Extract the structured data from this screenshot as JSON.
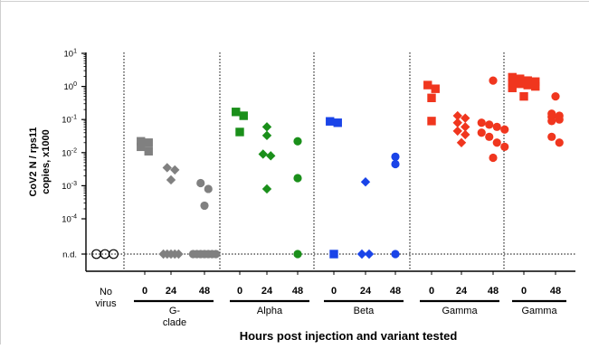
{
  "chart_data": {
    "type": "scatter",
    "title": "",
    "ylabel_lines": [
      "CoV2 N / rps11",
      "copies, x1000"
    ],
    "xlabel": "Hours post injection and variant tested",
    "yscale": "log",
    "ylim": [
      1e-05,
      10
    ],
    "y_ticks": [
      {
        "value": 10,
        "base": "10",
        "exp": "1"
      },
      {
        "value": 1,
        "base": "10",
        "exp": "0"
      },
      {
        "value": 0.1,
        "base": "10",
        "exp": "-1"
      },
      {
        "value": 0.01,
        "base": "10",
        "exp": "-2"
      },
      {
        "value": 0.001,
        "base": "10",
        "exp": "-3"
      },
      {
        "value": 0.0001,
        "base": "10",
        "exp": "-4"
      }
    ],
    "nd_label": "n.d.",
    "groups": [
      {
        "label_lines": [
          "No",
          "virus"
        ],
        "color": "#000000",
        "columns": [
          {
            "hours": "",
            "marker": "open-circle",
            "values": [
              "n.d.",
              "n.d.",
              "n.d."
            ]
          }
        ]
      },
      {
        "label_lines": [
          "G-",
          "clade"
        ],
        "color": "#808080",
        "columns": [
          {
            "hours": "0",
            "marker": "square",
            "values": [
              0.022,
              0.02,
              0.015,
              0.011
            ]
          },
          {
            "hours": "24",
            "marker": "diamond",
            "values": [
              0.0035,
              0.003,
              0.0015,
              "n.d.",
              "n.d.",
              "n.d.",
              "n.d.",
              "n.d."
            ]
          },
          {
            "hours": "48",
            "marker": "circle",
            "values": [
              0.0012,
              0.0008,
              0.00025,
              "n.d.",
              "n.d.",
              "n.d.",
              "n.d.",
              "n.d.",
              "n.d.",
              "n.d."
            ]
          }
        ]
      },
      {
        "label_lines": [
          "Alpha"
        ],
        "color": "#1a8f1a",
        "columns": [
          {
            "hours": "0",
            "marker": "square",
            "values": [
              0.17,
              0.13,
              0.042
            ]
          },
          {
            "hours": "24",
            "marker": "diamond",
            "values": [
              0.06,
              0.033,
              0.009,
              0.008,
              0.0008
            ]
          },
          {
            "hours": "48",
            "marker": "circle",
            "values": [
              0.022,
              0.0017,
              "n.d."
            ]
          }
        ]
      },
      {
        "label_lines": [
          "Beta"
        ],
        "color": "#1a44e8",
        "columns": [
          {
            "hours": "0",
            "marker": "square",
            "values": [
              0.088,
              0.08,
              "n.d."
            ]
          },
          {
            "hours": "24",
            "marker": "diamond",
            "values": [
              0.0013,
              "n.d.",
              "n.d."
            ]
          },
          {
            "hours": "48",
            "marker": "circle",
            "values": [
              0.0075,
              0.0045,
              "n.d."
            ]
          }
        ]
      },
      {
        "label_lines": [
          "Gamma"
        ],
        "color": "#f0361e",
        "columns": [
          {
            "hours": "0",
            "marker": "square",
            "values": [
              1.1,
              0.85,
              0.45,
              0.09
            ]
          },
          {
            "hours": "24",
            "marker": "diamond",
            "values": [
              0.13,
              0.11,
              0.08,
              0.06,
              0.045,
              0.035,
              0.02
            ]
          },
          {
            "hours": "48",
            "marker": "circle",
            "values": [
              1.5,
              0.08,
              0.07,
              0.06,
              0.05,
              0.04,
              0.03,
              0.02,
              0.015,
              0.007
            ]
          }
        ]
      },
      {
        "label_lines": [
          "Gamma"
        ],
        "color": "#f0361e",
        "columns": [
          {
            "hours": "0",
            "marker": "square",
            "values": [
              1.9,
              1.7,
              1.5,
              1.4,
              1.3,
              1.2,
              1.1,
              1.0,
              0.9,
              0.5
            ]
          },
          {
            "hours": "48",
            "marker": "circle",
            "values": [
              0.5,
              0.15,
              0.13,
              0.12,
              0.1,
              0.09,
              0.03,
              0.02
            ]
          }
        ]
      }
    ]
  }
}
